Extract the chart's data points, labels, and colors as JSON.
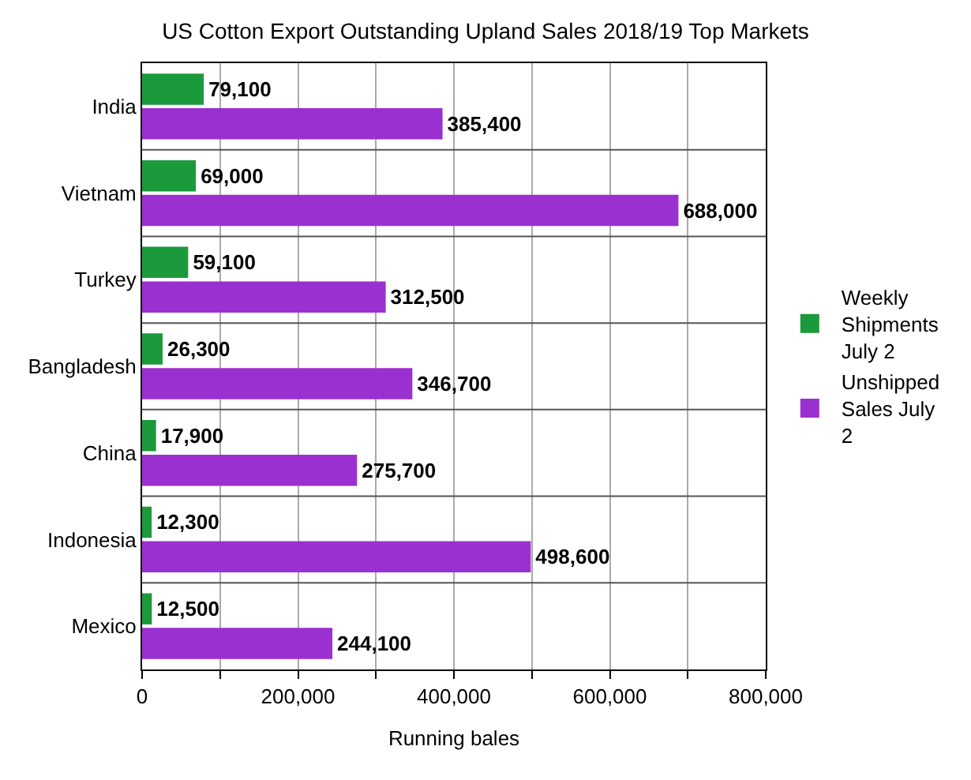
{
  "chart_data": {
    "type": "bar",
    "orientation": "horizontal",
    "title": "US Cotton Export Outstanding Upland Sales 2018/19 Top Markets",
    "xlabel": "Running bales",
    "categories": [
      "India",
      "Vietnam",
      "Turkey",
      "Bangladesh",
      "China",
      "Indonesia",
      "Mexico"
    ],
    "series": [
      {
        "name": "Weekly Shipments July 2",
        "color": "#1b9a3c",
        "values": [
          79100,
          69000,
          59100,
          26300,
          17900,
          12300,
          12500
        ],
        "value_labels": [
          "79,100",
          "69,000",
          "59,100",
          "26,300",
          "17,900",
          "12,300",
          "12,500"
        ]
      },
      {
        "name": "Unshipped Sales July 2",
        "color": "#9b30d0",
        "values": [
          385400,
          688000,
          312500,
          346700,
          275700,
          498600,
          244100
        ],
        "value_labels": [
          "385,400",
          "688,000",
          "312,500",
          "346,700",
          "275,700",
          "498,600",
          "244,100"
        ]
      }
    ],
    "xlim": [
      0,
      800000
    ],
    "xticks": [
      {
        "value": 0,
        "label": "0"
      },
      {
        "value": 100000,
        "label": null
      },
      {
        "value": 200000,
        "label": "200,000"
      },
      {
        "value": 300000,
        "label": null
      },
      {
        "value": 400000,
        "label": "400,000"
      },
      {
        "value": 500000,
        "label": null
      },
      {
        "value": 600000,
        "label": "600,000"
      },
      {
        "value": 700000,
        "label": null
      },
      {
        "value": 800000,
        "label": "800,000"
      }
    ],
    "grid": true,
    "legend": "right"
  }
}
